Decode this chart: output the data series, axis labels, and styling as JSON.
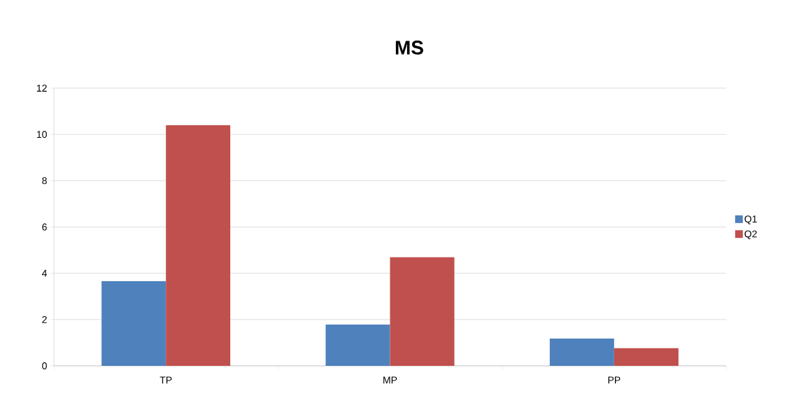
{
  "chart_data": {
    "type": "bar",
    "title": "MS",
    "categories": [
      "TP",
      "MP",
      "PP"
    ],
    "series": [
      {
        "name": "Q1",
        "color": "#4f81bd",
        "values": [
          3.66,
          1.78,
          1.18
        ]
      },
      {
        "name": "Q2",
        "color": "#c0504d",
        "values": [
          10.4,
          4.69,
          0.76
        ]
      }
    ],
    "ylim": [
      0,
      12
    ],
    "yticks": [
      0,
      2,
      4,
      6,
      8,
      10,
      12
    ],
    "grid": "y",
    "legend": "right"
  }
}
